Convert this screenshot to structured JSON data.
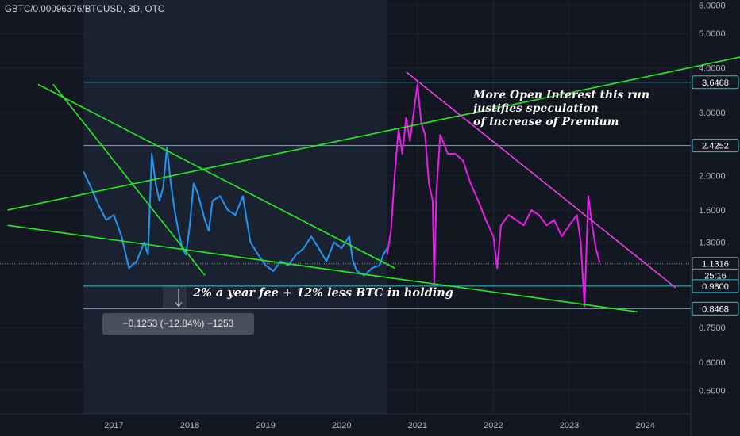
{
  "header": {
    "symbol_title": "GBTC/0.00096376/BTCUSD, 3D, OTC"
  },
  "annotations": {
    "open_interest_lines": [
      "More Open Interest this run",
      "justifies speculation",
      "of increase of Premium"
    ],
    "fee_note": "2% a year fee + 12% less BTC in holding",
    "measure_readout": "−0.1253 (−12.84%) −1253"
  },
  "colors": {
    "background": "#131722",
    "grid": "#1e2230",
    "blue_series": "#2196f3",
    "magenta_series": "#e91ee8",
    "trendline": "#22ee22",
    "resistance_line": "#e93ee6",
    "level_line": "#33c6c6",
    "axis_text": "#b2b5be",
    "price_box_bg": "#131722"
  },
  "chart_data": {
    "type": "line",
    "yscale": "log",
    "ylim": [
      0.43,
      6.2
    ],
    "xlim": [
      2015.5,
      2024.6
    ],
    "x_ticks": [
      2017,
      2018,
      2019,
      2020,
      2021,
      2022,
      2023,
      2024
    ],
    "x_tick_labels": [
      "2017",
      "2018",
      "2019",
      "2020",
      "2021",
      "2022",
      "2023",
      "2024"
    ],
    "y_ticks": [
      6.0,
      5.0,
      4.0,
      3.0,
      2.0,
      1.6,
      1.3,
      0.75,
      0.6,
      0.5
    ],
    "y_tick_labels": [
      "6.0000",
      "5.0000",
      "4.0000",
      "3.0000",
      "2.0000",
      "1.6000",
      "1.3000",
      "0.7500",
      "0.6000",
      "0.5000"
    ],
    "series": [
      {
        "points": [
          [
            2016.6,
            2.05
          ],
          [
            2016.7,
            1.85
          ],
          [
            2016.8,
            1.65
          ],
          [
            2016.9,
            1.5
          ],
          [
            2017.0,
            1.55
          ],
          [
            2017.1,
            1.35
          ],
          [
            2017.2,
            1.1
          ],
          [
            2017.3,
            1.15
          ],
          [
            2017.4,
            1.3
          ],
          [
            2017.45,
            1.2
          ],
          [
            2017.5,
            2.3
          ],
          [
            2017.55,
            1.9
          ],
          [
            2017.6,
            1.7
          ],
          [
            2017.65,
            1.85
          ],
          [
            2017.7,
            2.4
          ],
          [
            2017.75,
            1.9
          ],
          [
            2017.8,
            1.6
          ],
          [
            2017.85,
            1.4
          ],
          [
            2017.9,
            1.25
          ],
          [
            2017.95,
            1.2
          ],
          [
            2018.0,
            1.45
          ],
          [
            2018.05,
            1.9
          ],
          [
            2018.1,
            1.8
          ],
          [
            2018.2,
            1.5
          ],
          [
            2018.25,
            1.4
          ],
          [
            2018.3,
            1.7
          ],
          [
            2018.4,
            1.75
          ],
          [
            2018.5,
            1.6
          ],
          [
            2018.6,
            1.55
          ],
          [
            2018.7,
            1.75
          ],
          [
            2018.75,
            1.5
          ],
          [
            2018.8,
            1.3
          ],
          [
            2018.9,
            1.2
          ],
          [
            2019.0,
            1.12
          ],
          [
            2019.1,
            1.08
          ],
          [
            2019.2,
            1.15
          ],
          [
            2019.3,
            1.12
          ],
          [
            2019.4,
            1.2
          ],
          [
            2019.5,
            1.25
          ],
          [
            2019.6,
            1.35
          ],
          [
            2019.7,
            1.25
          ],
          [
            2019.8,
            1.15
          ],
          [
            2019.9,
            1.3
          ],
          [
            2020.0,
            1.25
          ],
          [
            2020.1,
            1.35
          ],
          [
            2020.15,
            1.15
          ],
          [
            2020.2,
            1.08
          ],
          [
            2020.3,
            1.05
          ],
          [
            2020.4,
            1.1
          ],
          [
            2020.5,
            1.12
          ],
          [
            2020.55,
            1.2
          ],
          [
            2020.6,
            1.25
          ]
        ]
      },
      {
        "points": [
          [
            2020.6,
            1.2
          ],
          [
            2020.65,
            1.4
          ],
          [
            2020.7,
            2.0
          ],
          [
            2020.75,
            2.7
          ],
          [
            2020.8,
            2.3
          ],
          [
            2020.85,
            2.9
          ],
          [
            2020.9,
            2.5
          ],
          [
            2020.95,
            3.0
          ],
          [
            2021.0,
            3.6
          ],
          [
            2021.05,
            2.8
          ],
          [
            2021.1,
            2.6
          ],
          [
            2021.15,
            1.9
          ],
          [
            2021.2,
            1.7
          ],
          [
            2021.22,
            1.0
          ],
          [
            2021.25,
            1.8
          ],
          [
            2021.3,
            2.6
          ],
          [
            2021.4,
            2.3
          ],
          [
            2021.5,
            2.3
          ],
          [
            2021.6,
            2.2
          ],
          [
            2021.7,
            1.9
          ],
          [
            2021.8,
            1.7
          ],
          [
            2021.9,
            1.5
          ],
          [
            2022.0,
            1.35
          ],
          [
            2022.05,
            1.1
          ],
          [
            2022.1,
            1.45
          ],
          [
            2022.2,
            1.55
          ],
          [
            2022.3,
            1.5
          ],
          [
            2022.4,
            1.45
          ],
          [
            2022.5,
            1.6
          ],
          [
            2022.6,
            1.55
          ],
          [
            2022.7,
            1.45
          ],
          [
            2022.8,
            1.5
          ],
          [
            2022.9,
            1.35
          ],
          [
            2023.0,
            1.45
          ],
          [
            2023.1,
            1.55
          ],
          [
            2023.15,
            1.3
          ],
          [
            2023.2,
            0.86
          ],
          [
            2023.25,
            1.75
          ],
          [
            2023.3,
            1.45
          ],
          [
            2023.35,
            1.25
          ],
          [
            2023.4,
            1.14
          ]
        ]
      }
    ],
    "trendlines": [
      {
        "color": "green",
        "from": [
          2015.6,
          1.6
        ],
        "to": [
          2025.5,
          4.4
        ]
      },
      {
        "color": "green",
        "from": [
          2016.0,
          3.6
        ],
        "to": [
          2020.7,
          1.1
        ]
      },
      {
        "color": "green",
        "from": [
          2016.2,
          3.6
        ],
        "to": [
          2018.2,
          1.05
        ]
      },
      {
        "color": "green",
        "from": [
          2015.6,
          1.45
        ],
        "to": [
          2023.9,
          0.83
        ]
      },
      {
        "color": "magenta",
        "from": [
          2020.85,
          3.9
        ],
        "to": [
          2024.4,
          0.97
        ]
      }
    ],
    "horizontal_levels": [
      3.6468,
      2.4252,
      0.98,
      0.8468
    ],
    "price_labels": [
      {
        "value": 3.6468,
        "label": "3.6468",
        "highlight": true
      },
      {
        "value": 2.4252,
        "label": "2.4252",
        "highlight": true
      },
      {
        "value": 1.1316,
        "label": "1.1316",
        "highlight": false
      },
      {
        "value": 1.05,
        "label": "25:16",
        "highlight": false
      },
      {
        "value": 0.98,
        "label": "0.9800",
        "highlight": true
      },
      {
        "value": 0.8468,
        "label": "0.8468",
        "highlight": true
      }
    ],
    "last_price": 1.1316
  }
}
